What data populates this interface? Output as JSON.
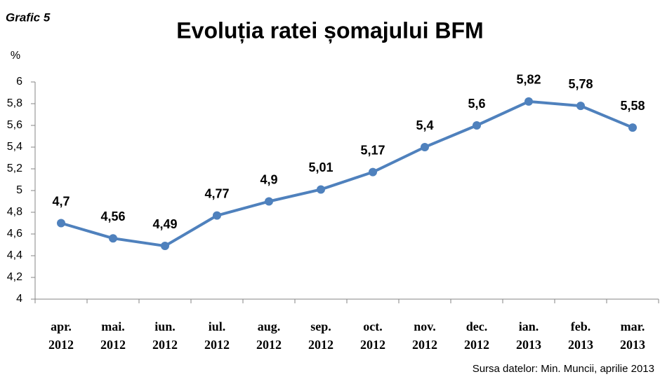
{
  "chart_data": {
    "type": "line",
    "caption": "Grafic 5",
    "title": "Evoluția ratei șomajului BFM",
    "ylabel": "%",
    "source": "Sursa datelor: Min. Muncii, aprilie 2013",
    "categories": [
      "apr.\n2012",
      "mai.\n2012",
      "iun.\n2012",
      "iul.\n2012",
      "aug.\n2012",
      "sep.\n2012",
      "oct.\n2012",
      "nov.\n2012",
      "dec.\n2012",
      "ian.\n2013",
      "feb.\n2013",
      "mar.\n2013"
    ],
    "series": [
      {
        "name": "Rata șomajului",
        "color": "#4f81bd",
        "values": [
          4.7,
          4.56,
          4.49,
          4.77,
          4.9,
          5.01,
          5.17,
          5.4,
          5.6,
          5.82,
          5.78,
          5.58
        ],
        "value_labels": [
          "4,7",
          "4,56",
          "4,49",
          "4,77",
          "4,9",
          "5,01",
          "5,17",
          "5,4",
          "5,6",
          "5,82",
          "5,78",
          "5,58"
        ]
      }
    ],
    "ylim": [
      4,
      6
    ],
    "yticks": [
      4,
      {
        "value": 4.2,
        "label": "4,2"
      },
      {
        "value": 4.4,
        "label": "4,4"
      },
      {
        "value": 4.6,
        "label": "4,6"
      },
      {
        "value": 4.8,
        "label": "4,8"
      },
      5,
      {
        "value": 5.2,
        "label": "5,2"
      },
      {
        "value": 5.4,
        "label": "5,4"
      },
      {
        "value": 5.6,
        "label": "5,6"
      },
      {
        "value": 5.8,
        "label": "5,8"
      },
      6
    ],
    "grid": false
  }
}
